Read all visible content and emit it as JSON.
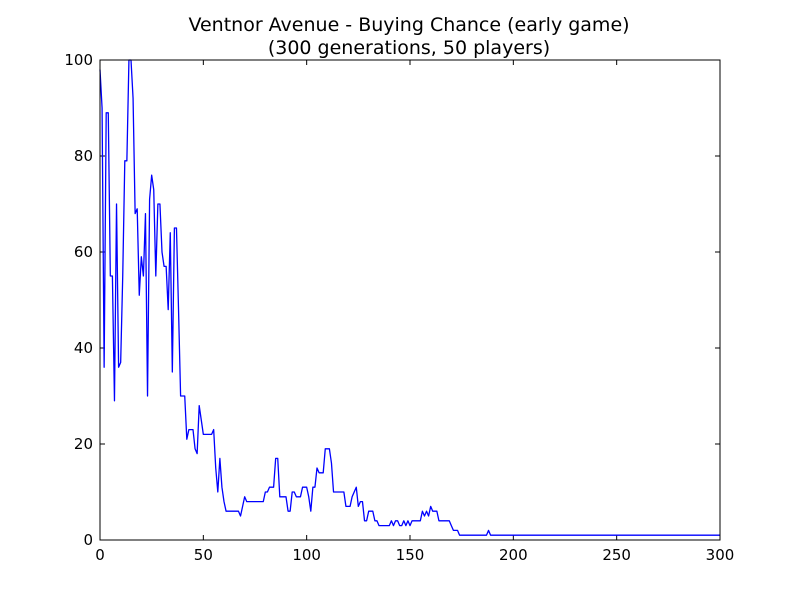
{
  "chart_data": {
    "type": "line",
    "title": "Ventnor Avenue - Buying Chance (early game)",
    "subtitle": "(300 generations, 50 players)",
    "xlabel": "",
    "ylabel": "",
    "xlim": [
      0,
      300
    ],
    "ylim": [
      0,
      100
    ],
    "xticks": [
      0,
      50,
      100,
      150,
      200,
      250,
      300
    ],
    "yticks": [
      0,
      20,
      40,
      60,
      80,
      100
    ],
    "grid": false,
    "series": [
      {
        "name": "",
        "color": "#0000ff",
        "points": [
          [
            0,
            98
          ],
          [
            1,
            90
          ],
          [
            2,
            36
          ],
          [
            3,
            89
          ],
          [
            4,
            89
          ],
          [
            5,
            55
          ],
          [
            6,
            55
          ],
          [
            7,
            29
          ],
          [
            8,
            70
          ],
          [
            9,
            36
          ],
          [
            10,
            37
          ],
          [
            11,
            55
          ],
          [
            12,
            79
          ],
          [
            13,
            79
          ],
          [
            14,
            100
          ],
          [
            15,
            100
          ],
          [
            16,
            92
          ],
          [
            17,
            68
          ],
          [
            18,
            69
          ],
          [
            19,
            51
          ],
          [
            20,
            59
          ],
          [
            21,
            55
          ],
          [
            22,
            68
          ],
          [
            23,
            30
          ],
          [
            24,
            71
          ],
          [
            25,
            76
          ],
          [
            26,
            73
          ],
          [
            27,
            55
          ],
          [
            28,
            70
          ],
          [
            29,
            70
          ],
          [
            30,
            60
          ],
          [
            31,
            57
          ],
          [
            32,
            57
          ],
          [
            33,
            48
          ],
          [
            34,
            64
          ],
          [
            35,
            35
          ],
          [
            36,
            65
          ],
          [
            37,
            65
          ],
          [
            38,
            48
          ],
          [
            39,
            30
          ],
          [
            40,
            30
          ],
          [
            41,
            30
          ],
          [
            42,
            21
          ],
          [
            43,
            23
          ],
          [
            44,
            23
          ],
          [
            45,
            23
          ],
          [
            46,
            19
          ],
          [
            47,
            18
          ],
          [
            48,
            28
          ],
          [
            49,
            25
          ],
          [
            50,
            22
          ],
          [
            51,
            22
          ],
          [
            52,
            22
          ],
          [
            53,
            22
          ],
          [
            54,
            22
          ],
          [
            55,
            23
          ],
          [
            56,
            15
          ],
          [
            57,
            10
          ],
          [
            58,
            17
          ],
          [
            59,
            11
          ],
          [
            60,
            8
          ],
          [
            61,
            6
          ],
          [
            62,
            6
          ],
          [
            63,
            6
          ],
          [
            64,
            6
          ],
          [
            65,
            6
          ],
          [
            66,
            6
          ],
          [
            67,
            6
          ],
          [
            68,
            5
          ],
          [
            69,
            7
          ],
          [
            70,
            9
          ],
          [
            71,
            8
          ],
          [
            72,
            8
          ],
          [
            73,
            8
          ],
          [
            74,
            8
          ],
          [
            75,
            8
          ],
          [
            76,
            8
          ],
          [
            77,
            8
          ],
          [
            78,
            8
          ],
          [
            79,
            8
          ],
          [
            80,
            10
          ],
          [
            81,
            10
          ],
          [
            82,
            11
          ],
          [
            83,
            11
          ],
          [
            84,
            11
          ],
          [
            85,
            17
          ],
          [
            86,
            17
          ],
          [
            87,
            9
          ],
          [
            88,
            9
          ],
          [
            89,
            9
          ],
          [
            90,
            9
          ],
          [
            91,
            6
          ],
          [
            92,
            6
          ],
          [
            93,
            10
          ],
          [
            94,
            10
          ],
          [
            95,
            9
          ],
          [
            96,
            9
          ],
          [
            97,
            9
          ],
          [
            98,
            11
          ],
          [
            99,
            11
          ],
          [
            100,
            11
          ],
          [
            101,
            9
          ],
          [
            102,
            6
          ],
          [
            103,
            11
          ],
          [
            104,
            11
          ],
          [
            105,
            15
          ],
          [
            106,
            14
          ],
          [
            107,
            14
          ],
          [
            108,
            14
          ],
          [
            109,
            19
          ],
          [
            110,
            19
          ],
          [
            111,
            19
          ],
          [
            112,
            16
          ],
          [
            113,
            10
          ],
          [
            114,
            10
          ],
          [
            115,
            10
          ],
          [
            116,
            10
          ],
          [
            117,
            10
          ],
          [
            118,
            10
          ],
          [
            119,
            7
          ],
          [
            120,
            7
          ],
          [
            121,
            7
          ],
          [
            122,
            9
          ],
          [
            123,
            10
          ],
          [
            124,
            11
          ],
          [
            125,
            7
          ],
          [
            126,
            8
          ],
          [
            127,
            8
          ],
          [
            128,
            4
          ],
          [
            129,
            4
          ],
          [
            130,
            6
          ],
          [
            131,
            6
          ],
          [
            132,
            6
          ],
          [
            133,
            4
          ],
          [
            134,
            4
          ],
          [
            135,
            3
          ],
          [
            136,
            3
          ],
          [
            137,
            3
          ],
          [
            138,
            3
          ],
          [
            139,
            3
          ],
          [
            140,
            3
          ],
          [
            141,
            4
          ],
          [
            142,
            3
          ],
          [
            143,
            4
          ],
          [
            144,
            4
          ],
          [
            145,
            3
          ],
          [
            146,
            3
          ],
          [
            147,
            4
          ],
          [
            148,
            3
          ],
          [
            149,
            4
          ],
          [
            150,
            3
          ],
          [
            151,
            4
          ],
          [
            152,
            4
          ],
          [
            153,
            4
          ],
          [
            154,
            4
          ],
          [
            155,
            4
          ],
          [
            156,
            6
          ],
          [
            157,
            5
          ],
          [
            158,
            6
          ],
          [
            159,
            5
          ],
          [
            160,
            7
          ],
          [
            161,
            6
          ],
          [
            162,
            6
          ],
          [
            163,
            6
          ],
          [
            164,
            4
          ],
          [
            165,
            4
          ],
          [
            166,
            4
          ],
          [
            167,
            4
          ],
          [
            168,
            4
          ],
          [
            169,
            4
          ],
          [
            170,
            3
          ],
          [
            171,
            2
          ],
          [
            172,
            2
          ],
          [
            173,
            2
          ],
          [
            174,
            1
          ],
          [
            175,
            1
          ],
          [
            176,
            1
          ],
          [
            177,
            1
          ],
          [
            178,
            1
          ],
          [
            179,
            1
          ],
          [
            180,
            1
          ],
          [
            181,
            1
          ],
          [
            182,
            1
          ],
          [
            183,
            1
          ],
          [
            184,
            1
          ],
          [
            185,
            1
          ],
          [
            186,
            1
          ],
          [
            187,
            1
          ],
          [
            188,
            2
          ],
          [
            189,
            1
          ],
          [
            190,
            1
          ],
          [
            200,
            1
          ],
          [
            250,
            1
          ],
          [
            300,
            1
          ]
        ]
      }
    ]
  }
}
